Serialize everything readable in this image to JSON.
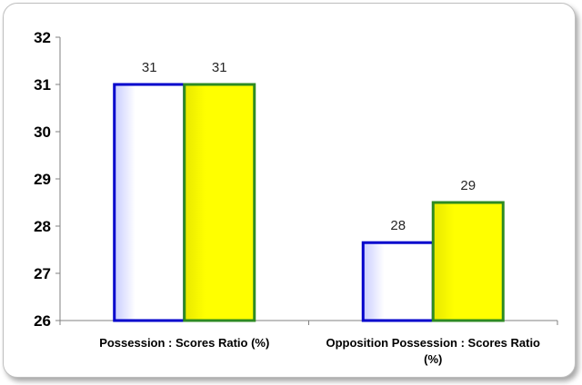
{
  "chart_data": {
    "type": "bar",
    "categories": [
      [
        "Possession : Scores Ratio (%)"
      ],
      [
        "Opposition Possession : Scores Ratio",
        "(%)"
      ]
    ],
    "series": [
      {
        "values": [
          31.0,
          27.65
        ],
        "labels": [
          "31",
          "28"
        ],
        "fill": "#ffffff",
        "stroke": "#0000cc"
      },
      {
        "values": [
          31.0,
          28.5
        ],
        "labels": [
          "31",
          "29"
        ],
        "fill": "#ffff00",
        "stroke": "#2e8b22"
      }
    ],
    "ylim": [
      26,
      32
    ],
    "yticks": [
      "26",
      "27",
      "28",
      "29",
      "30",
      "31",
      "32"
    ],
    "title": "",
    "xlabel": "",
    "ylabel": "",
    "grid": false,
    "legend": "none"
  }
}
